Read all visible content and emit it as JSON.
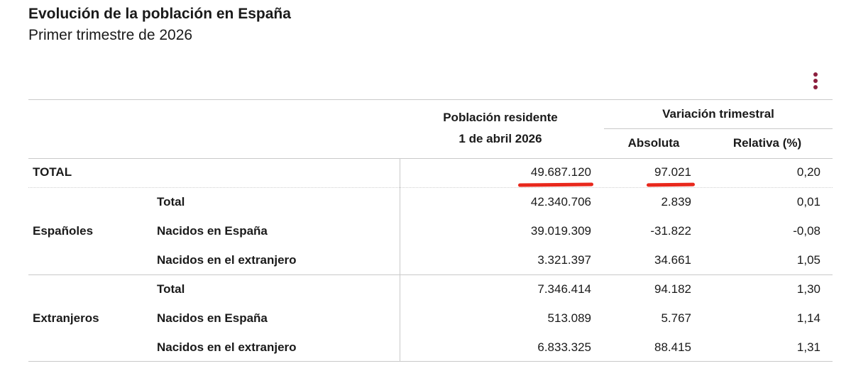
{
  "header": {
    "title": "Evolución de la población en España",
    "subtitle": "Primer trimestre de 2026",
    "menu_icon": "more-vertical-icon"
  },
  "columns": {
    "population_line1": "Población residente",
    "population_line2": "1 de abril 2026",
    "variation_group": "Variación trimestral",
    "absolute": "Absoluta",
    "relative": "Relativa (%)"
  },
  "groups": {
    "spaniards": "Españoles",
    "foreigners": "Extranjeros"
  },
  "rows": [
    {
      "label": "TOTAL",
      "population": "49.687.120",
      "absolute": "97.021",
      "relative": "0,20"
    },
    {
      "label": "Total",
      "population": "42.340.706",
      "absolute": "2.839",
      "relative": "0,01"
    },
    {
      "label": "Nacidos en España",
      "population": "39.019.309",
      "absolute": "-31.822",
      "relative": "-0,08"
    },
    {
      "label": "Nacidos en el extranjero",
      "population": "3.321.397",
      "absolute": "34.661",
      "relative": "1,05"
    },
    {
      "label": "Total",
      "population": "7.346.414",
      "absolute": "94.182",
      "relative": "1,30"
    },
    {
      "label": "Nacidos en España",
      "population": "513.089",
      "absolute": "5.767",
      "relative": "1,14"
    },
    {
      "label": "Nacidos en el extranjero",
      "population": "6.833.325",
      "absolute": "88.415",
      "relative": "1,31"
    }
  ],
  "highlight_color": "#e8281c",
  "accent_color": "#8c1f3e"
}
